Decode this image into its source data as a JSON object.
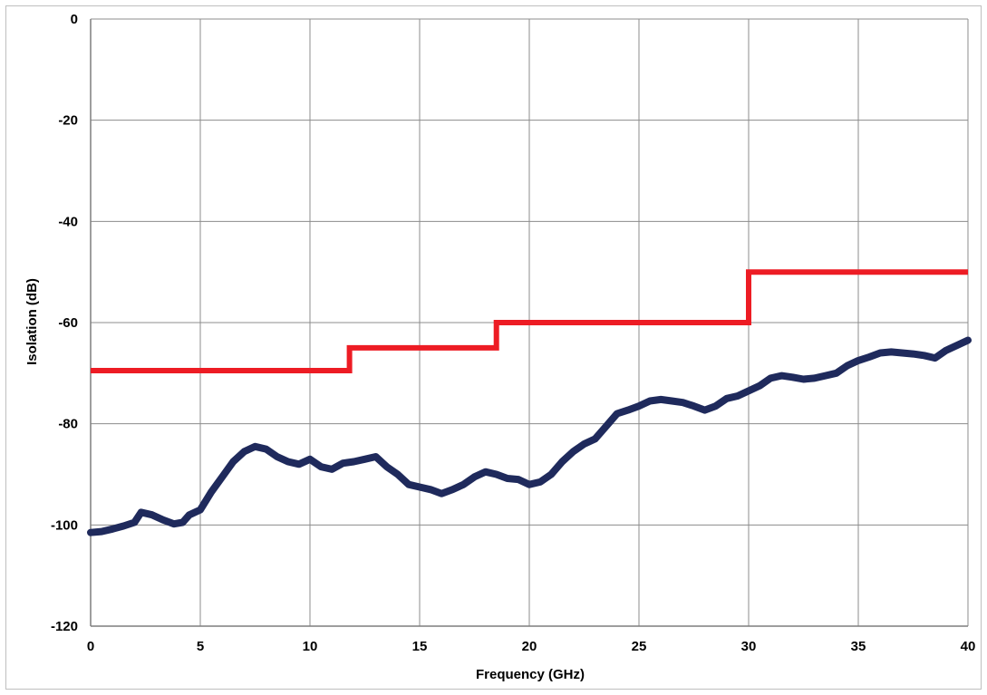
{
  "chart_data": {
    "type": "line",
    "title": "",
    "xlabel": "Frequency (GHz)",
    "ylabel": "Isolation (dB)",
    "xlim": [
      0,
      40
    ],
    "ylim": [
      -120,
      0
    ],
    "xticks": [
      0,
      5,
      10,
      15,
      20,
      25,
      30,
      35,
      40
    ],
    "yticks": [
      0,
      -20,
      -40,
      -60,
      -80,
      -100,
      -120
    ],
    "x_tick_labels": [
      "0",
      "5",
      "10",
      "15",
      "20",
      "25",
      "30",
      "35",
      "40"
    ],
    "y_tick_labels": [
      "0",
      "-20",
      "-40",
      "-60",
      "-80",
      "-100",
      "-120"
    ],
    "grid": true,
    "legend": "none",
    "series": [
      {
        "role": "measured",
        "color": "#1f2a5c",
        "style": "line",
        "x": [
          0,
          0.5,
          1,
          1.5,
          2,
          2.3,
          2.8,
          3.3,
          3.8,
          4.2,
          4.5,
          5,
          5.5,
          6,
          6.5,
          7,
          7.5,
          8,
          8.5,
          9,
          9.5,
          10,
          10.5,
          11,
          11.5,
          12,
          12.5,
          13,
          13.5,
          14,
          14.5,
          15,
          15.5,
          16,
          16.5,
          17,
          17.5,
          18,
          18.5,
          19,
          19.5,
          20,
          20.5,
          21,
          21.5,
          22,
          22.5,
          23,
          23.5,
          24,
          24.5,
          25,
          25.5,
          26,
          26.5,
          27,
          27.5,
          28,
          28.5,
          29,
          29.5,
          30,
          30.5,
          31,
          31.5,
          32,
          32.5,
          33,
          33.5,
          34,
          34.5,
          35,
          35.5,
          36,
          36.5,
          37,
          37.5,
          38,
          38.5,
          39,
          39.5,
          40
        ],
        "values": [
          -101.5,
          -101.3,
          -100.8,
          -100.2,
          -99.5,
          -97.5,
          -98,
          -99,
          -99.8,
          -99.5,
          -98,
          -97,
          -93.5,
          -90.5,
          -87.5,
          -85.5,
          -84.5,
          -85,
          -86.5,
          -87.5,
          -88,
          -87,
          -88.5,
          -89,
          -87.8,
          -87.5,
          -87,
          -86.5,
          -88.5,
          -90,
          -92,
          -92.5,
          -93,
          -93.8,
          -93,
          -92,
          -90.5,
          -89.5,
          -90,
          -90.8,
          -91,
          -92,
          -91.5,
          -90,
          -87.5,
          -85.5,
          -84,
          -83,
          -80.5,
          -78,
          -77.3,
          -76.5,
          -75.5,
          -75.2,
          -75.5,
          -75.8,
          -76.5,
          -77.3,
          -76.5,
          -75,
          -74.5,
          -73.5,
          -72.5,
          -71,
          -70.5,
          -70.8,
          -71.2,
          -71,
          -70.5,
          -70,
          -68.5,
          -67.5,
          -66.8,
          -66,
          -65.8,
          -66,
          -66.2,
          -66.5,
          -67,
          -65.5,
          -64.5,
          -63.5
        ]
      },
      {
        "role": "specification",
        "color": "#ed1c24",
        "style": "step",
        "x": [
          0,
          11.8,
          11.8,
          18.5,
          18.5,
          30,
          30,
          40
        ],
        "values": [
          -69.5,
          -69.5,
          -65,
          -65,
          -60,
          -60,
          -50,
          -50
        ]
      }
    ]
  }
}
